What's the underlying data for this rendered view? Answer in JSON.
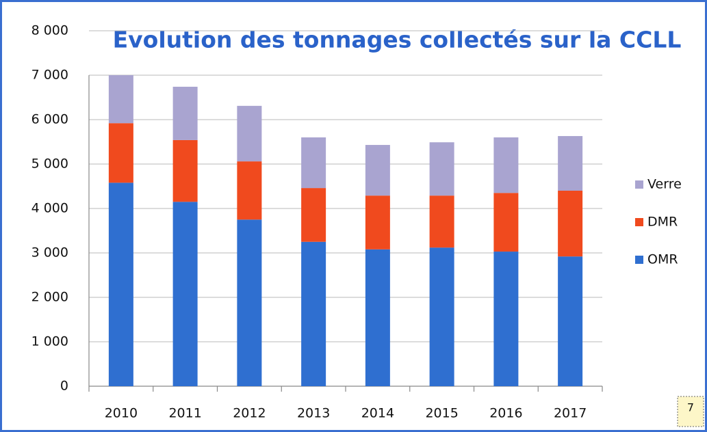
{
  "chart_data": {
    "type": "stacked_bar",
    "title": "Evolution des tonnages collectés sur la CCLL",
    "categories": [
      "2010",
      "2011",
      "2012",
      "2013",
      "2014",
      "2015",
      "2016",
      "2017"
    ],
    "series": [
      {
        "name": "OMR",
        "color": "#2f6fd0",
        "values": [
          4580,
          4150,
          3750,
          3250,
          3080,
          3120,
          3030,
          2920
        ]
      },
      {
        "name": "DMR",
        "color": "#f04a1e",
        "values": [
          1340,
          1390,
          1310,
          1210,
          1210,
          1170,
          1320,
          1480
        ]
      },
      {
        "name": "Verre",
        "color": "#a9a4d0",
        "values": [
          1080,
          1200,
          1250,
          1140,
          1140,
          1200,
          1250,
          1230
        ]
      }
    ],
    "ylim": [
      0,
      8000
    ],
    "yticks": [
      0,
      {
        "value": 1000,
        "label": "1 000"
      },
      {
        "value": 2000,
        "label": "2 000"
      },
      {
        "value": 3000,
        "label": "3 000"
      },
      {
        "value": 4000,
        "label": "4 000"
      },
      {
        "value": 5000,
        "label": "5 000"
      },
      {
        "value": 6000,
        "label": "6 000"
      },
      {
        "value": 7000,
        "label": "7 000"
      },
      {
        "value": 8000,
        "label": "8 000"
      }
    ],
    "grid": true,
    "legend": "right",
    "page_number": "7"
  }
}
